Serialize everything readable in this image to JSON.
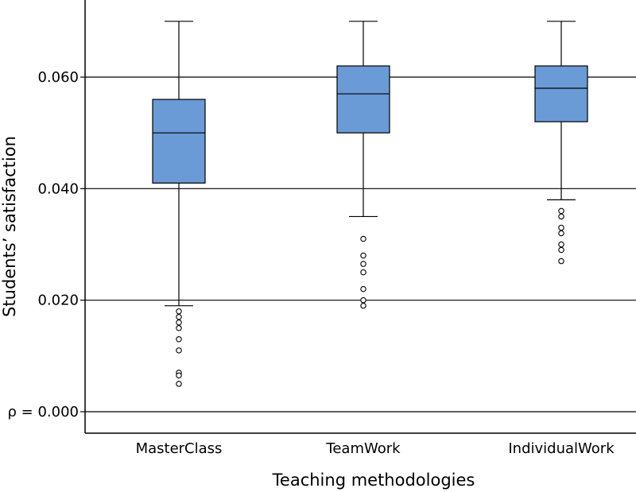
{
  "chart_data": {
    "type": "boxplot",
    "xlabel": "Teaching methodologies",
    "ylabel": "Students’ satisfaction",
    "ylim": [
      0,
      0.07
    ],
    "yticks": [
      {
        "value": 0.0,
        "label": "ρ = 0.000"
      },
      {
        "value": 0.02,
        "label": "0.020"
      },
      {
        "value": 0.04,
        "label": "0.040"
      },
      {
        "value": 0.06,
        "label": "0.060"
      }
    ],
    "grid": true,
    "box_color": "#6a9bd6",
    "categories": [
      "MasterClass",
      "TeamWork",
      "IndividualWork"
    ],
    "boxes": [
      {
        "name": "MasterClass",
        "whisker_low": 0.019,
        "q1": 0.041,
        "median": 0.05,
        "q3": 0.056,
        "whisker_high": 0.07,
        "outliers": [
          0.018,
          0.017,
          0.016,
          0.015,
          0.013,
          0.011,
          0.007,
          0.0065,
          0.005
        ]
      },
      {
        "name": "TeamWork",
        "whisker_low": 0.035,
        "q1": 0.05,
        "median": 0.057,
        "q3": 0.062,
        "whisker_high": 0.07,
        "outliers": [
          0.031,
          0.028,
          0.0265,
          0.025,
          0.022,
          0.02,
          0.019
        ]
      },
      {
        "name": "IndividualWork",
        "whisker_low": 0.038,
        "q1": 0.052,
        "median": 0.058,
        "q3": 0.062,
        "whisker_high": 0.07,
        "outliers": [
          0.036,
          0.035,
          0.033,
          0.032,
          0.03,
          0.029,
          0.027
        ]
      }
    ]
  }
}
